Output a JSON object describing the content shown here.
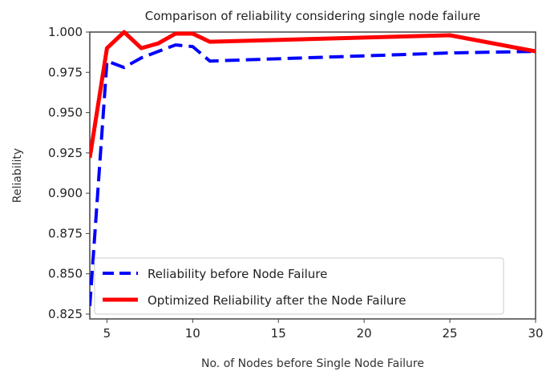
{
  "chart_data": {
    "type": "line",
    "title": "Comparison of reliability considering single node failure",
    "xlabel": "No. of Nodes before Single Node Failure",
    "ylabel": "Reliability",
    "xlim": [
      4,
      30
    ],
    "ylim": [
      0.822,
      1.0
    ],
    "xticks": [
      5,
      10,
      15,
      20,
      25,
      30
    ],
    "xtick_labels": [
      "5",
      "10",
      "15",
      "20",
      "25",
      "30"
    ],
    "yticks": [
      0.825,
      0.85,
      0.875,
      0.9,
      0.925,
      0.95,
      0.975,
      1.0
    ],
    "ytick_labels": [
      "0.825",
      "0.850",
      "0.875",
      "0.900",
      "0.925",
      "0.950",
      "0.975",
      "1.000"
    ],
    "grid": false,
    "legend_position": "lower-left",
    "series": [
      {
        "name": "Reliability before Node Failure",
        "color": "#0000ff",
        "style": "dashed",
        "x": [
          4,
          5,
          6,
          7,
          8,
          9,
          10,
          11,
          25,
          30
        ],
        "y": [
          0.83,
          0.982,
          0.978,
          0.984,
          0.988,
          0.992,
          0.991,
          0.982,
          0.987,
          0.988
        ]
      },
      {
        "name": "Optimized Reliability after the Node Failure",
        "color": "#ff0000",
        "style": "solid",
        "x": [
          4,
          5,
          6,
          7,
          8,
          9,
          10,
          11,
          25,
          30
        ],
        "y": [
          0.922,
          0.99,
          1.0,
          0.99,
          0.993,
          0.999,
          0.999,
          0.994,
          0.998,
          0.988
        ]
      }
    ]
  }
}
